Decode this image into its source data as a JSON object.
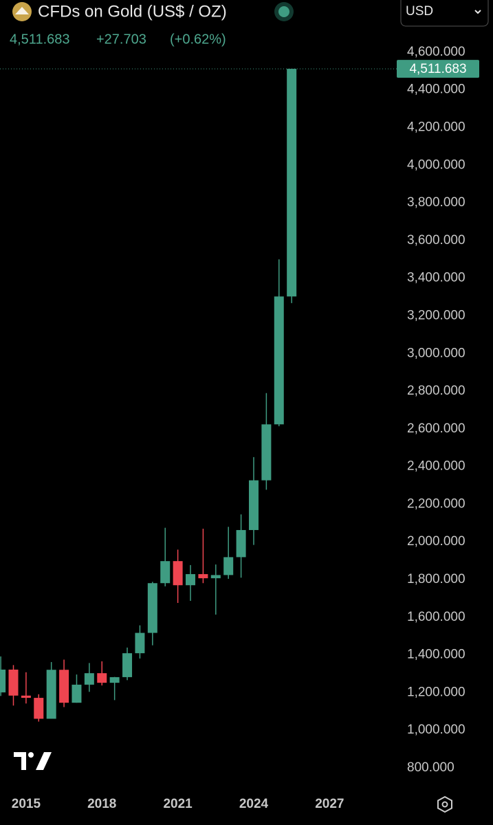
{
  "header": {
    "title": "CFDs on Gold (US$ / OZ)",
    "price": "4,511.683",
    "change": "+27.703",
    "change_pct": "(+0.62%)",
    "currency": "USD"
  },
  "chart_data": {
    "type": "candlestick",
    "x": [
      2014,
      2014.5,
      2015,
      2015.5,
      2016,
      2016.5,
      2017,
      2017.5,
      2018,
      2018.5,
      2019,
      2019.5,
      2020,
      2020.5,
      2021,
      2021.5,
      2022,
      2022.5,
      2023,
      2023.5,
      2024,
      2024.5,
      2025,
      2025.5
    ],
    "open": [
      1201,
      1322,
      1184,
      1172,
      1061,
      1321,
      1146,
      1242,
      1303,
      1252,
      1282,
      1409,
      1517,
      1781,
      1898,
      1770,
      1829,
      1807,
      1824,
      1919,
      2063,
      2327,
      2624,
      3303
    ],
    "high": [
      1392,
      1346,
      1308,
      1191,
      1362,
      1375,
      1296,
      1357,
      1366,
      1283,
      1439,
      1557,
      1788,
      2075,
      1959,
      1877,
      2070,
      1880,
      2080,
      2146,
      2450,
      2790,
      3500,
      4511.683
    ],
    "low": [
      1182,
      1131,
      1142,
      1046,
      1062,
      1123,
      1146,
      1204,
      1238,
      1160,
      1266,
      1381,
      1451,
      1764,
      1676,
      1687,
      1781,
      1614,
      1804,
      1810,
      1984,
      2277,
      2614,
      3268
    ],
    "close": [
      1322,
      1184,
      1172,
      1061,
      1321,
      1146,
      1242,
      1303,
      1252,
      1282,
      1409,
      1517,
      1781,
      1898,
      1770,
      1829,
      1807,
      1824,
      1919,
      2063,
      2327,
      2624,
      3303,
      4511.683
    ],
    "up_color": "#3f9c82",
    "down_color": "#ee4550",
    "xlim": [
      2013.97,
      2029.6
    ],
    "xticks": [
      2015,
      2018,
      2021,
      2024,
      2027
    ],
    "ylim": [
      716,
      4731
    ],
    "yticks": [
      {
        "value": 800,
        "label": "800.000"
      },
      {
        "value": 1000,
        "label": "1,000.000"
      },
      {
        "value": 1200,
        "label": "1,200.000"
      },
      {
        "value": 1400,
        "label": "1,400.000"
      },
      {
        "value": 1600,
        "label": "1,600.000"
      },
      {
        "value": 1800,
        "label": "1,800.000"
      },
      {
        "value": 2000,
        "label": "2,000.000"
      },
      {
        "value": 2200,
        "label": "2,200.000"
      },
      {
        "value": 2400,
        "label": "2,400.000"
      },
      {
        "value": 2600,
        "label": "2,600.000"
      },
      {
        "value": 2800,
        "label": "2,800.000"
      },
      {
        "value": 3000,
        "label": "3,000.000"
      },
      {
        "value": 3200,
        "label": "3,200.000"
      },
      {
        "value": 3400,
        "label": "3,400.000"
      },
      {
        "value": 3600,
        "label": "3,600.000"
      },
      {
        "value": 3800,
        "label": "3,800.000"
      },
      {
        "value": 4000,
        "label": "4,000.000"
      },
      {
        "value": 4200,
        "label": "4,200.000"
      },
      {
        "value": 4400,
        "label": "4,400.000"
      },
      {
        "value": 4600,
        "label": "4,600.000"
      }
    ],
    "grid": false
  }
}
